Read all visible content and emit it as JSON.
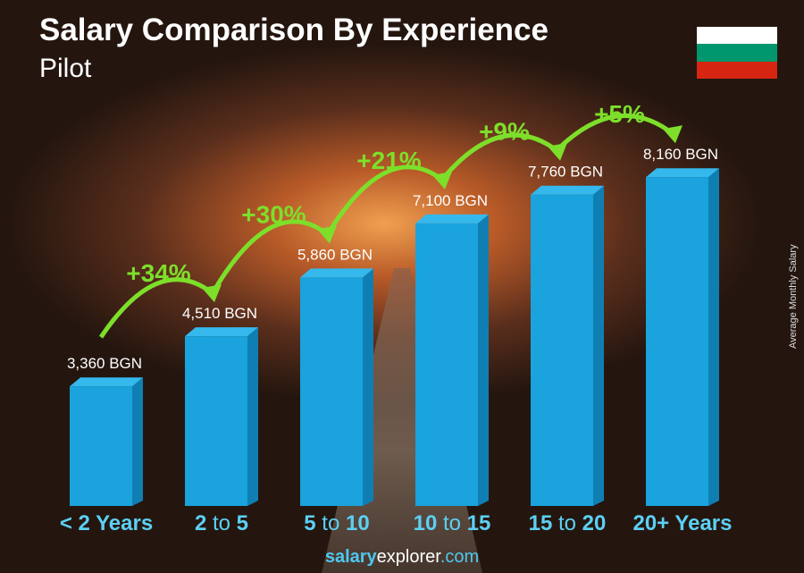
{
  "chart_data": {
    "type": "bar",
    "title": "Salary Comparison By Experience",
    "subtitle": "Pilot",
    "ylabel": "Average Monthly Salary",
    "categories": [
      {
        "bold1": "< 2 Years",
        "mid": "",
        "bold2": ""
      },
      {
        "bold1": "2",
        "mid": " to ",
        "bold2": "5"
      },
      {
        "bold1": "5",
        "mid": " to ",
        "bold2": "10"
      },
      {
        "bold1": "10",
        "mid": " to ",
        "bold2": "15"
      },
      {
        "bold1": "15",
        "mid": " to ",
        "bold2": "20"
      },
      {
        "bold1": "20+ Years",
        "mid": "",
        "bold2": ""
      }
    ],
    "values": [
      3360,
      4510,
      5860,
      7100,
      7760,
      8160
    ],
    "value_labels": [
      "3,360 BGN",
      "4,510 BGN",
      "5,860 BGN",
      "7,100 BGN",
      "7,760 BGN",
      "8,160 BGN"
    ],
    "changes": [
      "+34%",
      "+30%",
      "+21%",
      "+9%",
      "+5%"
    ],
    "unit": "BGN",
    "colors": {
      "bar": "#1aa3dc",
      "bar_side": "#0f7fb3",
      "bar_top": "#35b8ec",
      "change": "#7ddf2a",
      "category": "#5cd0f4"
    }
  },
  "flag_colors": [
    "#ffffff",
    "#00966e",
    "#d62612"
  ],
  "footer": {
    "part1": "salary",
    "part2": "explorer",
    "part3": ".com"
  }
}
